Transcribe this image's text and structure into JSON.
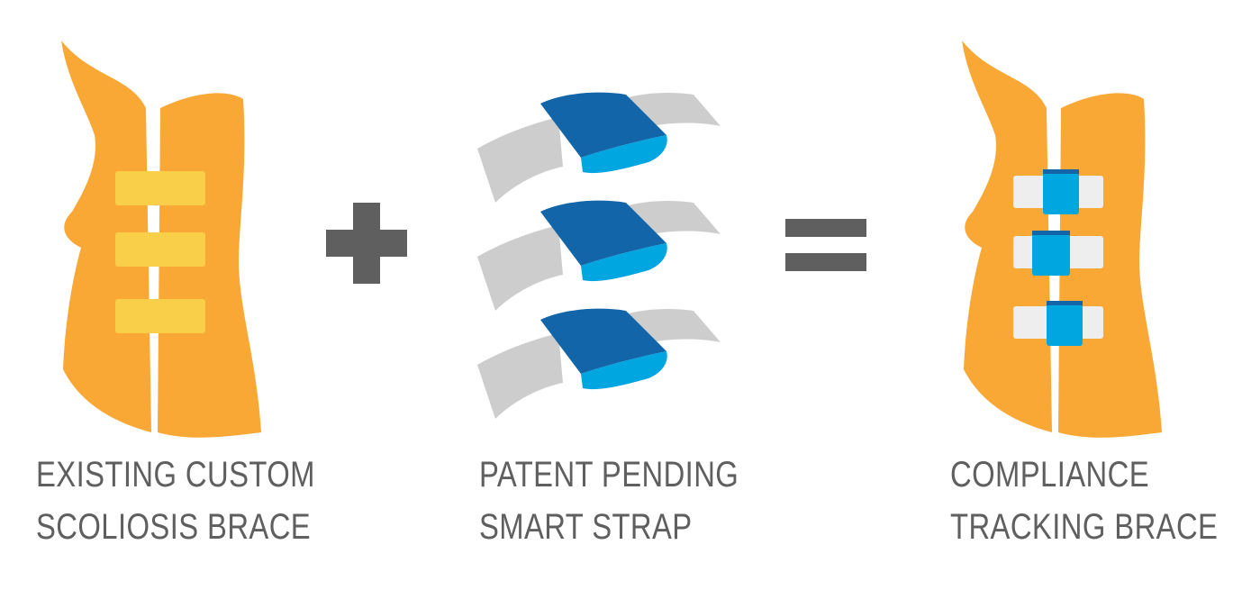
{
  "colors": {
    "brace_orange": "#F9A836",
    "brace_pad_yellow": "#F9CF4A",
    "strap_grey": "#CDCDCD",
    "strap_white": "#EEEEEE",
    "clip_dark_blue": "#1365A9",
    "clip_light_blue": "#00A6E0",
    "operator_grey": "#5F5F5F",
    "caption_grey": "#5F5F5F"
  },
  "panels": [
    {
      "id": "existing-brace",
      "icon": "scoliosis-brace-icon",
      "caption": [
        "EXISTING CUSTOM",
        "SCOLIOSIS BRACE"
      ]
    },
    {
      "id": "smart-strap",
      "icon": "smart-strap-icon",
      "caption": [
        "PATENT PENDING",
        "SMART STRAP"
      ]
    },
    {
      "id": "tracking-brace",
      "icon": "compliance-brace-icon",
      "caption": [
        "COMPLIANCE",
        "TRACKING BRACE"
      ]
    }
  ],
  "operators": {
    "plus": "plus-icon",
    "equals": "equals-icon"
  }
}
